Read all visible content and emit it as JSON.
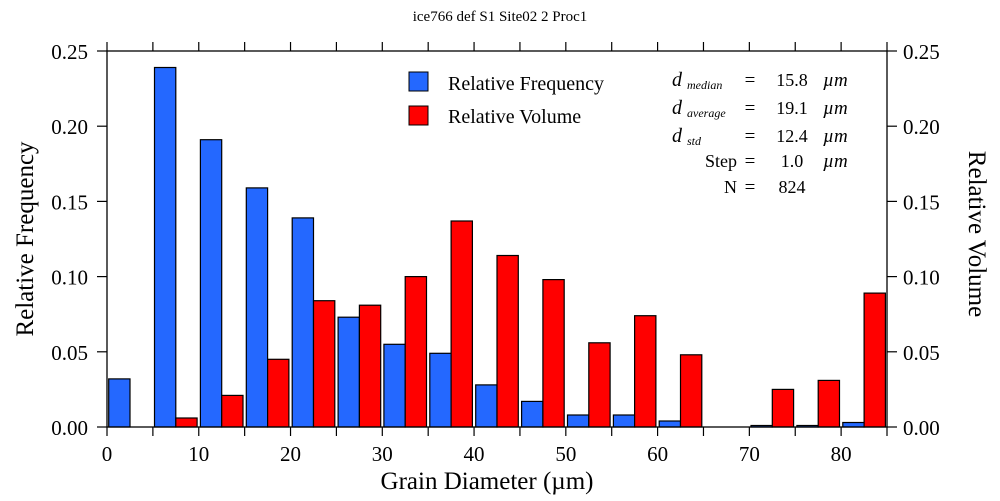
{
  "chart_data": {
    "type": "bar",
    "title": "ice766 def S1 Site02 2 Proc1",
    "xlabel": "Grain Diameter (µm)",
    "ylabel": "Relative Frequency",
    "y2label": "Relative Volume",
    "xlim": [
      0,
      85
    ],
    "ylim": [
      0,
      0.25
    ],
    "xticks": [
      "0",
      "10",
      "20",
      "30",
      "40",
      "50",
      "60",
      "70",
      "80"
    ],
    "yticks": [
      "0.00",
      "0.05",
      "0.10",
      "0.15",
      "0.20",
      "0.25"
    ],
    "bin_width": 5,
    "bin_starts": [
      0,
      5,
      10,
      15,
      20,
      25,
      30,
      35,
      40,
      45,
      50,
      55,
      60,
      65,
      70,
      75,
      80
    ],
    "series": [
      {
        "name": "Relative Frequency",
        "color": "#2468ff",
        "values": [
          0.032,
          0.239,
          0.191,
          0.159,
          0.139,
          0.073,
          0.055,
          0.049,
          0.028,
          0.017,
          0.008,
          0.008,
          0.004,
          0.0,
          0.001,
          0.001,
          0.003
        ]
      },
      {
        "name": "Relative Volume",
        "color": "#ff0000",
        "values": [
          0.0,
          0.006,
          0.021,
          0.045,
          0.084,
          0.081,
          0.1,
          0.137,
          0.114,
          0.098,
          0.056,
          0.074,
          0.048,
          0.0,
          0.025,
          0.031,
          0.089
        ]
      }
    ],
    "legend": "top-center",
    "grid": false,
    "stats": [
      {
        "symbol": "d",
        "sub": "median",
        "eq": "=",
        "value": "15.8",
        "unit": "µm"
      },
      {
        "symbol": "d",
        "sub": "average",
        "eq": "=",
        "value": "19.1",
        "unit": "µm"
      },
      {
        "symbol": "d",
        "sub": "std",
        "eq": "=",
        "value": "12.4",
        "unit": "µm"
      },
      {
        "symbol": "Step",
        "sub": "",
        "eq": "=",
        "value": "1.0",
        "unit": "µm"
      },
      {
        "symbol": "N",
        "sub": "",
        "eq": "=",
        "value": "824",
        "unit": ""
      }
    ]
  }
}
